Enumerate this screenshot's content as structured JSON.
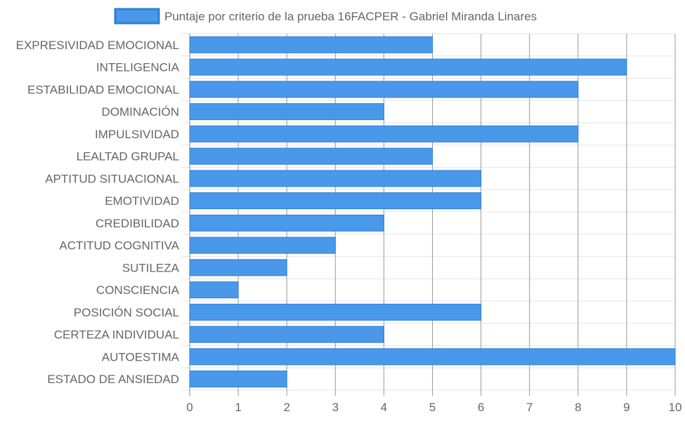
{
  "chart_data": {
    "type": "bar",
    "orientation": "horizontal",
    "title": "",
    "xlabel": "",
    "ylabel": "",
    "categories": [
      "EXPRESIVIDAD EMOCIONAL",
      "INTELIGENCIA",
      "ESTABILIDAD EMOCIONAL",
      "DOMINACIÓN",
      "IMPULSIVIDAD",
      "LEALTAD GRUPAL",
      "APTITUD SITUACIONAL",
      "EMOTIVIDAD",
      "CREDIBILIDAD",
      "ACTITUD COGNITIVA",
      "SUTILEZA",
      "CONSCIENCIA",
      "POSICIÓN SOCIAL",
      "CERTEZA INDIVIDUAL",
      "AUTOESTIMA",
      "ESTADO DE ANSIEDAD"
    ],
    "series": [
      {
        "name": "Puntaje por criterio de la prueba 16FACPER - Gabriel Miranda Linares",
        "values": [
          5,
          9,
          8,
          4,
          8,
          5,
          6,
          6,
          4,
          3,
          2,
          1,
          6,
          4,
          10,
          2
        ],
        "color": "#4a98ea",
        "border_color": "#2b7fd9"
      }
    ],
    "xlim": [
      0,
      10
    ],
    "x_ticks": [
      0,
      1,
      2,
      3,
      4,
      5,
      6,
      7,
      8,
      9,
      10
    ],
    "grid": true,
    "legend_position": "top"
  }
}
